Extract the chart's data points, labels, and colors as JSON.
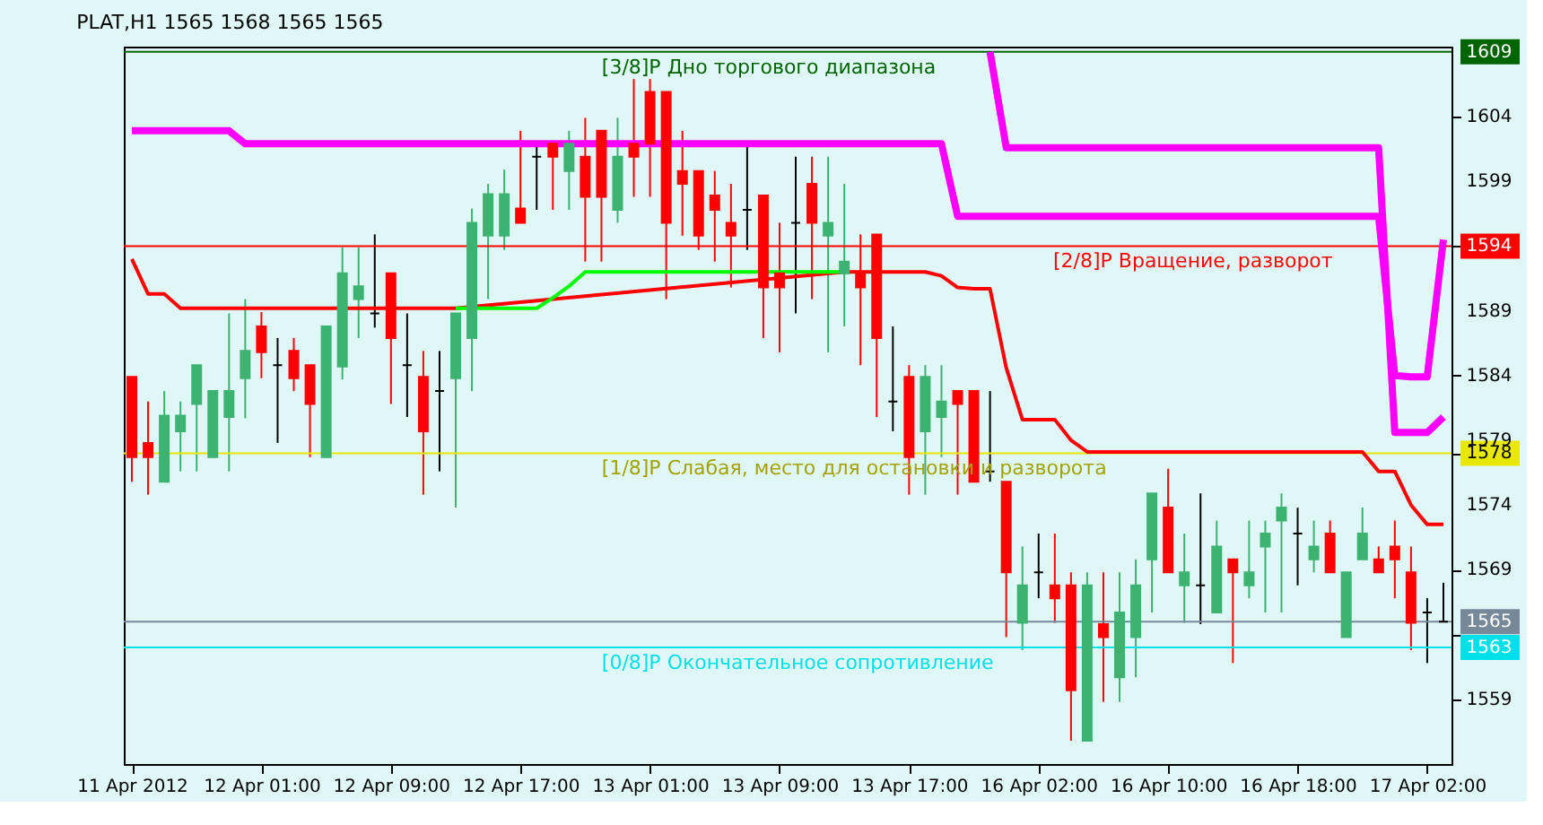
{
  "chart_data": {
    "type": "candlestick",
    "title": "PLAT,H1  1565 1568 1565 1565",
    "categories": [
      "11 Apr 2012",
      null,
      null,
      null,
      null,
      null,
      null,
      null,
      "12 Apr 01:00",
      null,
      null,
      null,
      null,
      null,
      null,
      null,
      "12 Apr 09:00",
      null,
      null,
      null,
      null,
      null,
      null,
      null,
      "12 Apr 17:00",
      null,
      null,
      null,
      null,
      null,
      null,
      null,
      "13 Apr 01:00",
      null,
      null,
      null,
      null,
      null,
      null,
      null,
      "13 Apr 09:00",
      null,
      null,
      null,
      null,
      null,
      null,
      null,
      "13 Apr 17:00",
      null,
      null,
      null,
      null,
      null,
      null,
      null,
      "16 Apr 02:00",
      null,
      null,
      null,
      null,
      null,
      null,
      null,
      "16 Apr 10:00",
      null,
      null,
      null,
      null,
      null,
      null,
      null,
      "16 Apr 18:00",
      null,
      null,
      null,
      null,
      null,
      null,
      null,
      "17 Apr 02:00",
      null
    ],
    "ohlc": [
      [
        1583.9,
        1583.9,
        1575.8,
        1577.7
      ],
      [
        1578.8,
        1582.0,
        1574.8,
        1577.7
      ],
      [
        1575.8,
        1582.8,
        1575.8,
        1580.9
      ],
      [
        1579.7,
        1582.0,
        1576.6,
        1580.9
      ],
      [
        1581.8,
        1584.8,
        1576.6,
        1584.8
      ],
      [
        1577.7,
        1582.8,
        1577.7,
        1582.8
      ],
      [
        1580.8,
        1588.8,
        1576.6,
        1582.8
      ],
      [
        1583.8,
        1589.9,
        1580.7,
        1585.9
      ],
      [
        1587.8,
        1588.9,
        1583.8,
        1585.8
      ],
      [
        1584.8,
        1586.9,
        1578.8,
        1584.8
      ],
      [
        1585.9,
        1586.9,
        1582.8,
        1583.8
      ],
      [
        1584.8,
        1584.8,
        1577.7,
        1581.8
      ],
      [
        1577.7,
        1587.8,
        1577.7,
        1587.8
      ],
      [
        1584.7,
        1593.9,
        1583.7,
        1591.9
      ],
      [
        1589.9,
        1593.9,
        1586.9,
        1590.9
      ],
      [
        1588.8,
        1594.9,
        1587.7,
        1588.8
      ],
      [
        1591.9,
        1591.9,
        1581.8,
        1586.9
      ],
      [
        1584.8,
        1588.8,
        1580.8,
        1584.8
      ],
      [
        1583.9,
        1585.9,
        1574.8,
        1579.7
      ],
      [
        1582.8,
        1585.9,
        1576.6,
        1582.8
      ],
      [
        1583.8,
        1588.8,
        1573.8,
        1588.8
      ],
      [
        1586.9,
        1596.9,
        1582.8,
        1595.8
      ],
      [
        1594.8,
        1598.8,
        1589.9,
        1598.0
      ],
      [
        1594.8,
        1599.9,
        1593.7,
        1598.0
      ],
      [
        1596.9,
        1602.9,
        1595.8,
        1595.8
      ],
      [
        1600.9,
        1601.9,
        1596.8,
        1600.9
      ],
      [
        1601.9,
        1601.9,
        1596.8,
        1600.9
      ],
      [
        1599.8,
        1602.9,
        1596.8,
        1601.9
      ],
      [
        1600.9,
        1603.9,
        1592.8,
        1597.8
      ],
      [
        1602.9,
        1602.9,
        1592.8,
        1597.8
      ],
      [
        1596.8,
        1603.9,
        1595.8,
        1600.9
      ],
      [
        1601.9,
        1606.9,
        1597.8,
        1600.9
      ],
      [
        1605.9,
        1606.9,
        1597.8,
        1601.9
      ],
      [
        1605.9,
        1605.9,
        1589.9,
        1595.8
      ],
      [
        1599.8,
        1602.9,
        1594.8,
        1598.8
      ],
      [
        1599.8,
        1599.8,
        1593.7,
        1594.8
      ],
      [
        1597.9,
        1599.8,
        1592.8,
        1596.8
      ],
      [
        1595.8,
        1598.8,
        1590.8,
        1594.8
      ],
      [
        1596.8,
        1601.9,
        1593.7,
        1596.8
      ],
      [
        1597.9,
        1597.9,
        1586.9,
        1590.8
      ],
      [
        1591.9,
        1595.8,
        1585.8,
        1590.8
      ],
      [
        1595.8,
        1600.9,
        1588.8,
        1595.8
      ],
      [
        1598.8,
        1600.9,
        1589.9,
        1595.8
      ],
      [
        1594.8,
        1600.9,
        1585.8,
        1595.8
      ],
      [
        1591.9,
        1598.8,
        1587.8,
        1592.8
      ],
      [
        1591.9,
        1594.9,
        1584.8,
        1590.8
      ],
      [
        1594.9,
        1594.9,
        1580.8,
        1586.9
      ],
      [
        1582.0,
        1587.8,
        1579.7,
        1582.0
      ],
      [
        1583.9,
        1584.8,
        1574.8,
        1577.7
      ],
      [
        1579.7,
        1584.8,
        1574.8,
        1583.9
      ],
      [
        1580.8,
        1584.8,
        1577.7,
        1582.0
      ],
      [
        1582.8,
        1582.8,
        1574.8,
        1581.8
      ],
      [
        1582.8,
        1582.8,
        1575.8,
        1575.8
      ],
      [
        1576.6,
        1582.8,
        1575.8,
        1576.6
      ],
      [
        1575.8,
        1575.8,
        1563.8,
        1568.8
      ],
      [
        1564.9,
        1570.8,
        1562.8,
        1567.8
      ],
      [
        1568.8,
        1571.8,
        1566.8,
        1568.8
      ],
      [
        1567.8,
        1571.8,
        1564.9,
        1566.8
      ],
      [
        1567.8,
        1568.8,
        1555.8,
        1559.7
      ],
      [
        1555.8,
        1568.8,
        1555.8,
        1567.8
      ],
      [
        1564.8,
        1568.8,
        1558.8,
        1563.8
      ],
      [
        1560.7,
        1568.8,
        1558.8,
        1565.7
      ],
      [
        1563.8,
        1569.8,
        1560.7,
        1567.8
      ],
      [
        1569.8,
        1574.9,
        1565.7,
        1574.9
      ],
      [
        1573.8,
        1576.8,
        1568.8,
        1568.8
      ],
      [
        1567.8,
        1571.8,
        1564.9,
        1568.8
      ],
      [
        1567.8,
        1574.9,
        1564.8,
        1567.8
      ],
      [
        1565.7,
        1572.8,
        1565.7,
        1570.8
      ],
      [
        1569.8,
        1569.8,
        1561.8,
        1568.8
      ],
      [
        1567.8,
        1572.8,
        1566.8,
        1568.8
      ],
      [
        1570.8,
        1572.8,
        1565.7,
        1571.8
      ],
      [
        1572.8,
        1574.9,
        1565.7,
        1573.8
      ],
      [
        1571.8,
        1573.8,
        1567.8,
        1571.8
      ],
      [
        1569.8,
        1572.8,
        1568.8,
        1570.8
      ],
      [
        1571.8,
        1572.8,
        1568.8,
        1568.8
      ],
      [
        1563.8,
        1568.8,
        1563.8,
        1568.8
      ],
      [
        1569.8,
        1573.8,
        1569.8,
        1571.8
      ],
      [
        1569.8,
        1570.8,
        1568.8,
        1568.8
      ],
      [
        1570.8,
        1572.8,
        1566.8,
        1569.8
      ],
      [
        1568.8,
        1570.8,
        1562.8,
        1564.9
      ],
      [
        1565.7,
        1566.8,
        1561.8,
        1565.7
      ],
      [
        1565,
        1568,
        1565,
        1565
      ]
    ],
    "colors": [
      "#ff0000",
      "#ff0000",
      "#3cb371",
      "#3cb371",
      "#3cb371",
      "#3cb371",
      "#3cb371",
      "#3cb371",
      "#ff0000",
      "#000000",
      "#ff0000",
      "#ff0000",
      "#3cb371",
      "#3cb371",
      "#3cb371",
      "#000000",
      "#ff0000",
      "#000000",
      "#ff0000",
      "#000000",
      "#3cb371",
      "#3cb371",
      "#3cb371",
      "#3cb371",
      "#ff0000",
      "#000000",
      "#ff0000",
      "#3cb371",
      "#ff0000",
      "#ff0000",
      "#3cb371",
      "#ff0000",
      "#ff0000",
      "#ff0000",
      "#ff0000",
      "#ff0000",
      "#ff0000",
      "#ff0000",
      "#000000",
      "#ff0000",
      "#ff0000",
      "#000000",
      "#ff0000",
      "#3cb371",
      "#3cb371",
      "#ff0000",
      "#ff0000",
      "#000000",
      "#ff0000",
      "#3cb371",
      "#3cb371",
      "#ff0000",
      "#ff0000",
      "#000000",
      "#ff0000",
      "#3cb371",
      "#000000",
      "#ff0000",
      "#ff0000",
      "#3cb371",
      "#ff0000",
      "#3cb371",
      "#3cb371",
      "#3cb371",
      "#ff0000",
      "#3cb371",
      "#000000",
      "#3cb371",
      "#ff0000",
      "#3cb371",
      "#3cb371",
      "#3cb371",
      "#000000",
      "#3cb371",
      "#ff0000",
      "#3cb371",
      "#3cb371",
      "#ff0000",
      "#ff0000",
      "#ff0000",
      "#000000",
      "#000000"
    ],
    "series": [
      {
        "type": "line",
        "color": "#ff0000",
        "values": [
          1593.0,
          1590.3,
          1590.3,
          1589.2,
          1589.2,
          1589.2,
          1589.2,
          1589.2,
          1589.2,
          1589.2,
          1589.2,
          1589.2,
          1589.2,
          1589.2,
          1589.2,
          1589.2,
          1589.2,
          1589.2,
          1589.2,
          1589.2,
          1589.2,
          null,
          null,
          null,
          null,
          null,
          null,
          null,
          null,
          null,
          null,
          null,
          null,
          null,
          null,
          null,
          null,
          null,
          null,
          null,
          null,
          null,
          null,
          null,
          1592.0,
          1592.0,
          1592.0,
          1592.0,
          1592.0,
          1592.0,
          1591.7,
          1590.8,
          1590.7,
          1590.7,
          1584.6,
          1580.6,
          1580.6,
          1580.6,
          1579.0,
          1578.1,
          1578.1,
          1578.1,
          1578.1,
          1578.1,
          1578.1,
          1578.1,
          1578.1,
          1578.1,
          1578.1,
          1578.1,
          1578.1,
          1578.1,
          1578.1,
          1578.1,
          1578.1,
          1578.1,
          1578.1,
          1576.6,
          1576.6,
          1574.0,
          1572.5,
          1572.5
        ]
      },
      {
        "type": "line",
        "color": "#00ff00",
        "values": [
          null,
          null,
          null,
          null,
          null,
          null,
          null,
          null,
          null,
          null,
          null,
          null,
          null,
          null,
          null,
          null,
          null,
          null,
          null,
          null,
          1589.2,
          1589.2,
          1589.2,
          1589.2,
          1589.2,
          1589.2,
          1590.0,
          1590.9,
          1592.0,
          1592.0,
          1592.0,
          1592.0,
          1592.0,
          1592.0,
          1592.0,
          1592.0,
          1592.0,
          1592.0,
          1592.0,
          1592.0,
          1592.0,
          1592.0,
          1592.0,
          1592.0,
          1592.0,
          null,
          null,
          null,
          null,
          null,
          null,
          null,
          null,
          null,
          null,
          null,
          null,
          null,
          null,
          null,
          null,
          null,
          null,
          null,
          null,
          null,
          null,
          null,
          null,
          null,
          null,
          null,
          null,
          null,
          null,
          null,
          null,
          null,
          null,
          null,
          null,
          null
        ]
      },
      {
        "type": "line",
        "color": "#ff00ff",
        "values": [
          1602.9,
          1602.9,
          1602.9,
          1602.9,
          1602.9,
          1602.9,
          1602.9,
          1601.9,
          1601.9,
          1601.9,
          1601.9,
          1601.9,
          1601.9,
          1601.9,
          1601.9,
          1601.9,
          1601.9,
          1601.9,
          1601.9,
          1601.9,
          1601.9,
          1601.9,
          1601.9,
          1601.9,
          1601.9,
          1601.9,
          1601.9,
          1601.9,
          1601.9,
          1601.9,
          1601.9,
          1601.9,
          1601.9,
          1601.9,
          1601.9,
          1601.9,
          1601.9,
          1601.9,
          1601.9,
          1601.9,
          1601.9,
          1601.9,
          1601.9,
          1601.9,
          1601.9,
          1601.9,
          1601.9,
          1601.9,
          1601.9,
          1601.9,
          1601.9,
          1596.3,
          1596.3,
          1596.3,
          1596.3,
          1596.3,
          1596.3,
          1596.3,
          1596.3,
          1596.3,
          1596.3,
          1596.3,
          1596.3,
          1596.3,
          1596.3,
          1596.3,
          1596.3,
          1596.3,
          1596.3,
          1596.3,
          1596.3,
          1596.3,
          1596.3,
          1596.3,
          1596.3,
          1596.3,
          1596.3,
          1596.3,
          1584.0,
          1583.9,
          1583.9,
          1594.5
        ]
      },
      {
        "type": "line",
        "color": "#ff00ff",
        "values": [
          null,
          null,
          null,
          null,
          null,
          null,
          null,
          null,
          null,
          null,
          null,
          null,
          null,
          null,
          null,
          null,
          null,
          null,
          null,
          null,
          null,
          null,
          null,
          null,
          null,
          null,
          null,
          null,
          null,
          null,
          null,
          null,
          null,
          null,
          null,
          null,
          null,
          null,
          null,
          null,
          null,
          null,
          null,
          null,
          null,
          null,
          null,
          null,
          null,
          null,
          null,
          null,
          null,
          1609.0,
          1601.6,
          1601.6,
          1601.6,
          1601.6,
          1601.6,
          1601.6,
          1601.6,
          1601.6,
          1601.6,
          1601.6,
          1601.6,
          1601.6,
          1601.6,
          1601.6,
          1601.6,
          1601.6,
          1601.6,
          1601.6,
          1601.6,
          1601.6,
          1601.6,
          1601.6,
          1601.6,
          1601.6,
          1579.6,
          1579.6,
          1579.6,
          1580.8
        ]
      }
    ],
    "ylim": [
      1554,
      1609.4
    ],
    "yticks": [
      1559,
      1563,
      {
        "value": 1564,
        "label": null
      },
      1565,
      1569,
      1574,
      1578,
      1579,
      1584,
      1589,
      1594,
      1599,
      1604,
      1609
    ],
    "ref_lines": [
      {
        "axis": "y",
        "value": 1609,
        "label": "[3/8]P Дно торгового диапазона",
        "color": "#006400"
      },
      {
        "axis": "y",
        "value": 1594,
        "label": "[2/8]P Вращение, разворот",
        "color": "#ff0000"
      },
      {
        "axis": "y",
        "value": 1578,
        "label": "[1/8]P Слабая, место для остановки и разворота",
        "color": "#e8e800"
      },
      {
        "axis": "y",
        "value": 1565,
        "label": null,
        "color": "#778899"
      },
      {
        "axis": "y",
        "value": 1563,
        "label": "[0/8]P Окончательное сопротивление",
        "color": "#00e0e8"
      }
    ],
    "grid": false
  }
}
